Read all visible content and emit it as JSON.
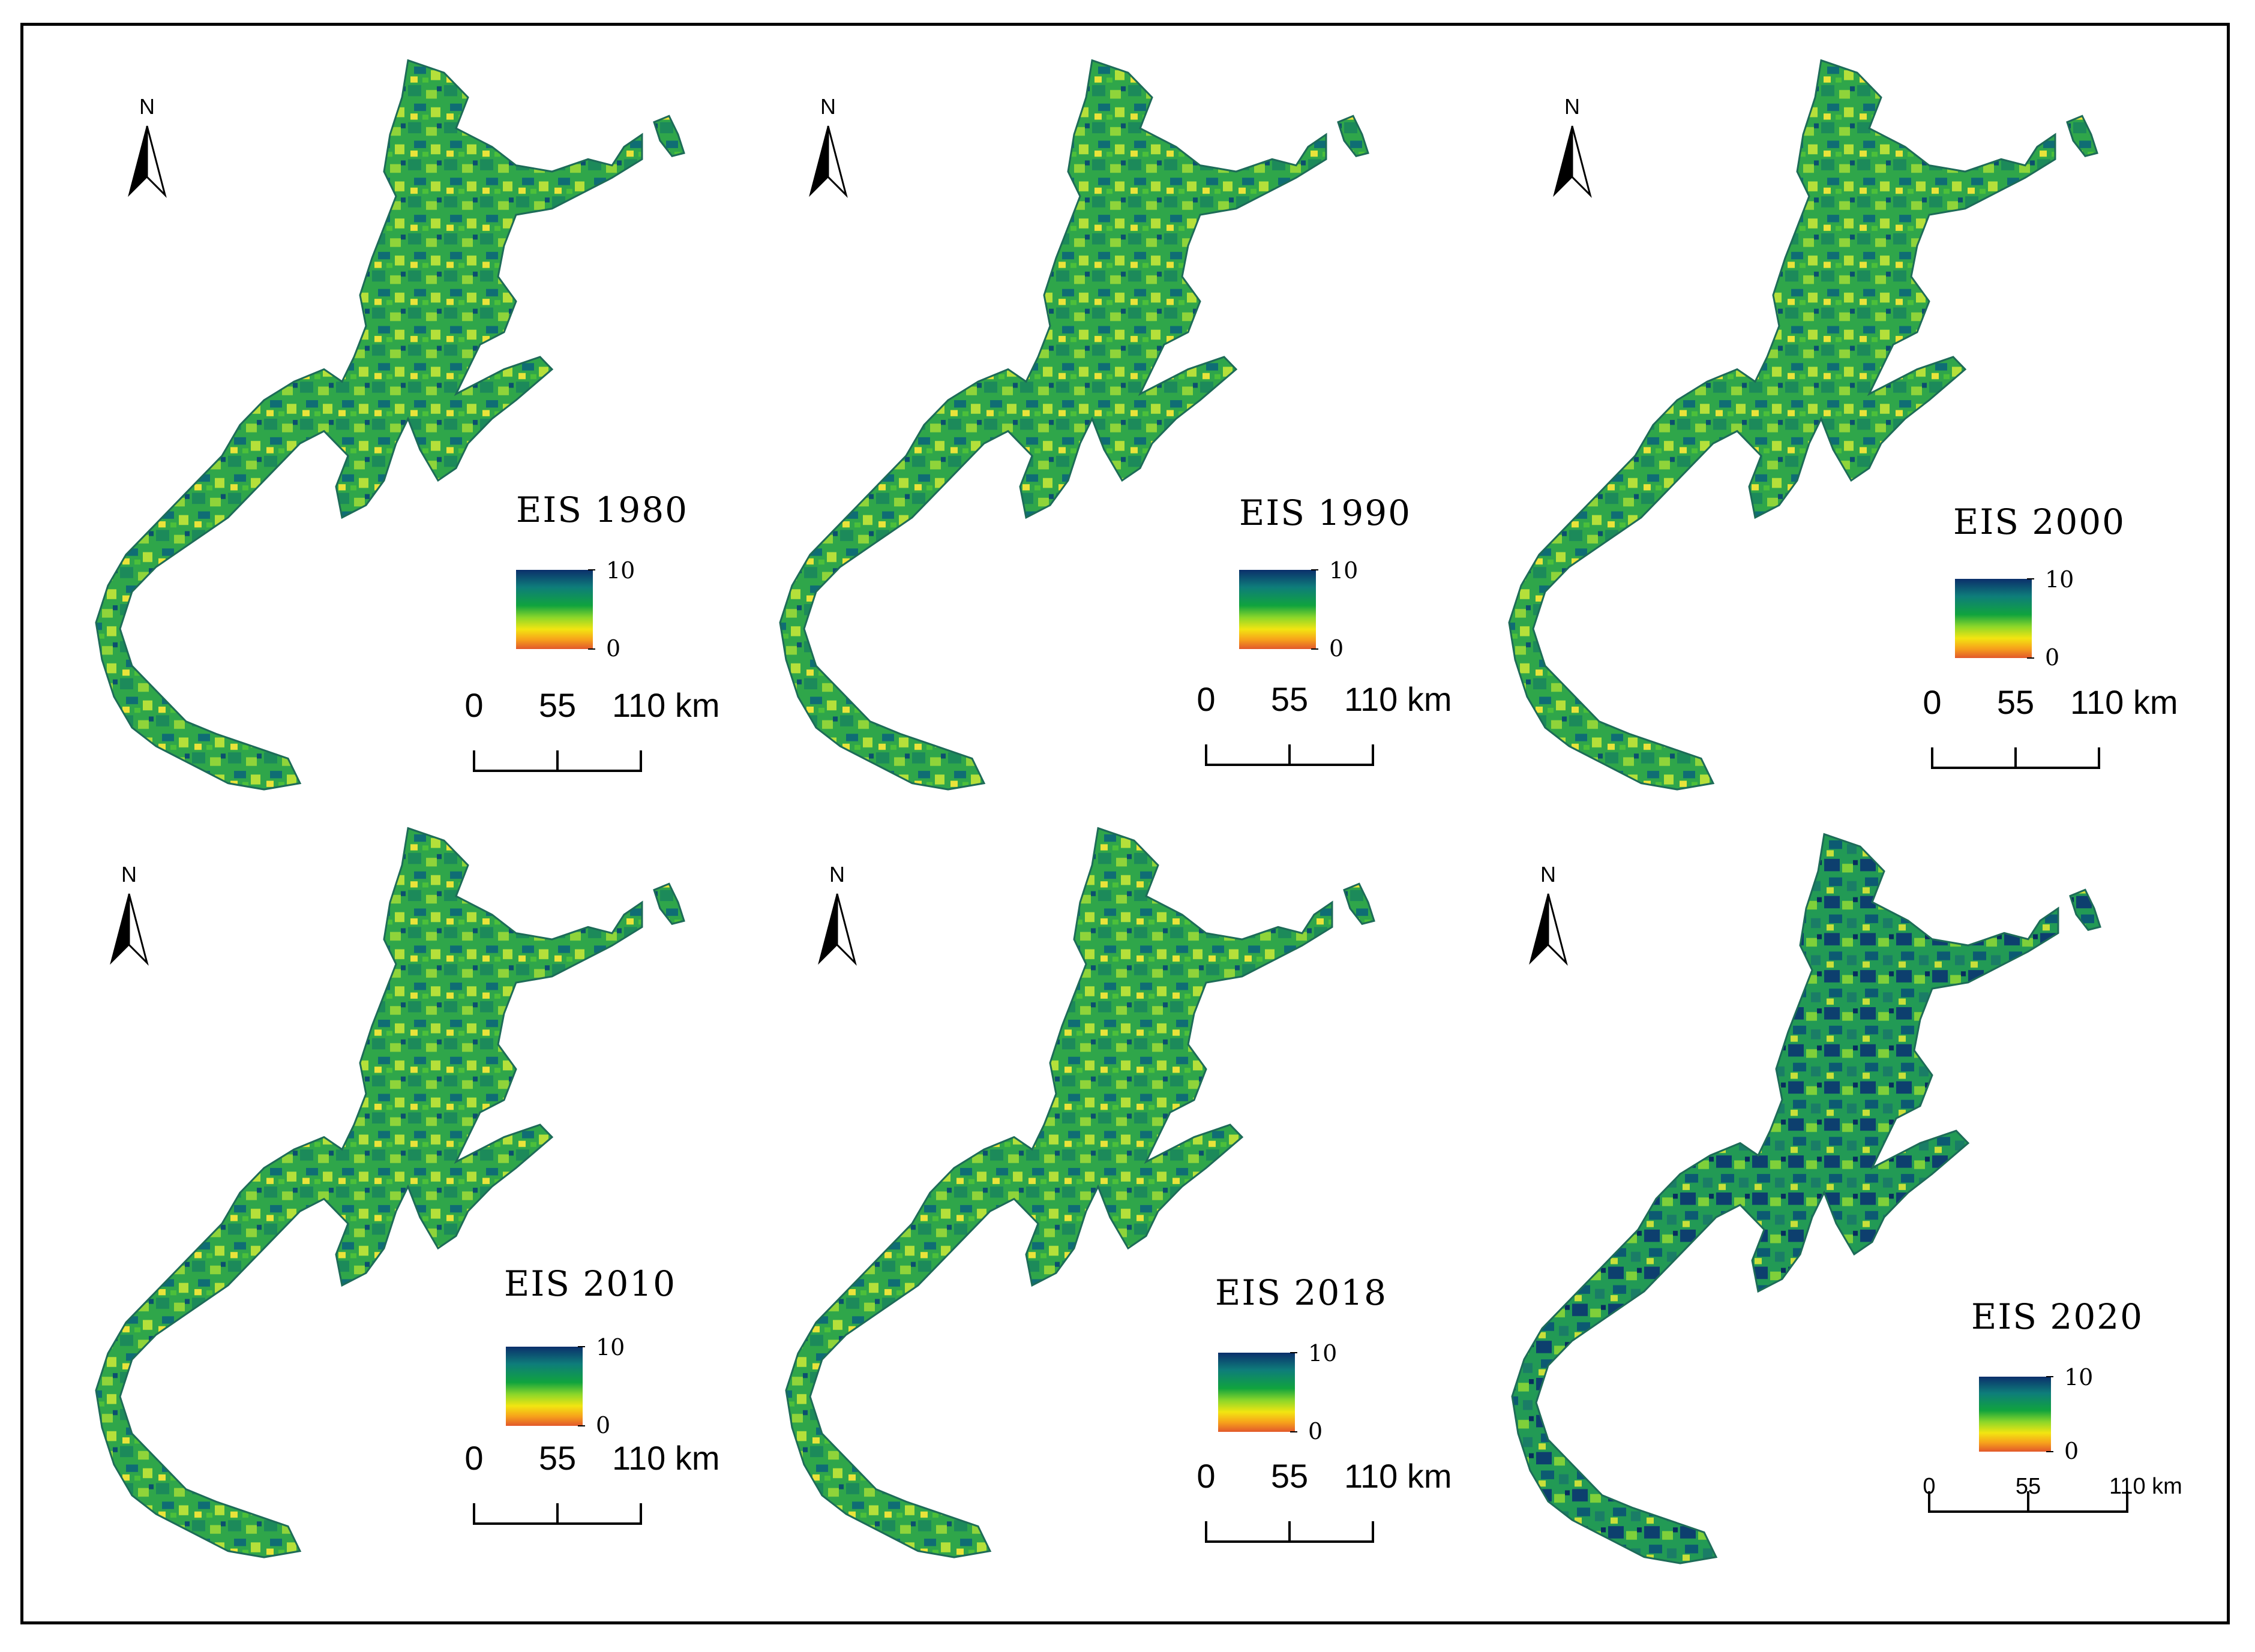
{
  "legend": {
    "max_label": "10",
    "min_label": "0",
    "colors": [
      "#0b2f6b",
      "#0e7d7a",
      "#10a33e",
      "#8ad62a",
      "#f2e511",
      "#f7a21b",
      "#e2582b"
    ]
  },
  "scale": {
    "ticks": [
      "0",
      "55",
      "110 km"
    ]
  },
  "north_label": "N",
  "panels": [
    {
      "title": "EIS 1980"
    },
    {
      "title": "EIS 1990"
    },
    {
      "title": "EIS 2000"
    },
    {
      "title": "EIS 2010"
    },
    {
      "title": "EIS 2018"
    },
    {
      "title": "EIS 2020"
    }
  ]
}
